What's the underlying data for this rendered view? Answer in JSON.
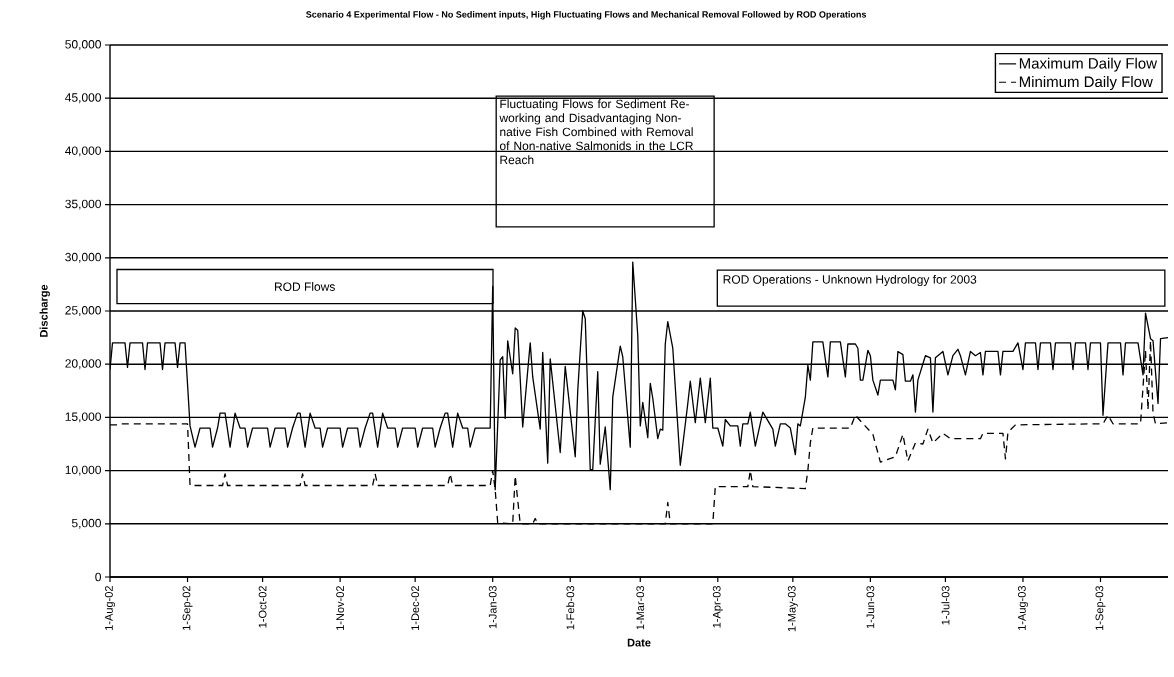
{
  "chart_data": {
    "type": "line",
    "title": "Scenario 4 Experimental Flow - No Sediment inputs, High Fluctuating Flows and Mechanical Removal Followed by ROD Operations",
    "xlabel": "Date",
    "ylabel": "Discharge",
    "xlim": [
      "2002-08-01",
      "2003-09-28"
    ],
    "xticks": [
      {
        "value": "2002-08-01",
        "label": "1-Aug-02"
      },
      {
        "value": "2002-09-01",
        "label": "1-Sep-02"
      },
      {
        "value": "2002-10-01",
        "label": "1-Oct-02"
      },
      {
        "value": "2002-11-01",
        "label": "1-Nov-02"
      },
      {
        "value": "2002-12-01",
        "label": "1-Dec-02"
      },
      {
        "value": "2003-01-01",
        "label": "1-Jan-03"
      },
      {
        "value": "2003-02-01",
        "label": "1-Feb-03"
      },
      {
        "value": "2003-03-01",
        "label": "1-Mar-03"
      },
      {
        "value": "2003-04-01",
        "label": "1-Apr-03"
      },
      {
        "value": "2003-05-01",
        "label": "1-May-03"
      },
      {
        "value": "2003-06-01",
        "label": "1-Jun-03"
      },
      {
        "value": "2003-07-01",
        "label": "1-Jul-03"
      },
      {
        "value": "2003-08-01",
        "label": "1-Aug-03"
      },
      {
        "value": "2003-09-01",
        "label": "1-Sep-03"
      }
    ],
    "ylim": [
      0,
      50000
    ],
    "yticks": [
      0,
      {
        "value": 5000,
        "label": "5,000"
      },
      {
        "value": 10000,
        "label": "10,000"
      },
      {
        "value": 15000,
        "label": "15,000"
      },
      {
        "value": 20000,
        "label": "20,000"
      },
      {
        "value": 25000,
        "label": "25,000"
      },
      {
        "value": 30000,
        "label": "30,000"
      },
      {
        "value": 35000,
        "label": "35,000"
      },
      {
        "value": 40000,
        "label": "40,000"
      },
      {
        "value": 45000,
        "label": "45,000"
      },
      {
        "value": 50000,
        "label": "50,000"
      }
    ],
    "grid": "y",
    "legend": "top right",
    "marker": "none",
    "annotations": [
      "ROD Flows",
      "Fluctuating Flows for Sediment Re-working and Disadvantaging Non-native Fish Combined with Removal of Non-native Salmonids in the LCR Reach",
      "ROD Operations - Unknown Hydrology for 2003"
    ],
    "series": [
      {
        "name": "Maximum Daily Flow",
        "color": "#000000",
        "line_style": "solid",
        "x": [
          "2002-08-01",
          "2002-08-02",
          "2002-08-07",
          "2002-08-08",
          "2002-08-09",
          "2002-08-14",
          "2002-08-15",
          "2002-08-16",
          "2002-08-21",
          "2002-08-22",
          "2002-08-23",
          "2002-08-27",
          "2002-08-28",
          "2002-08-29",
          "2002-08-31",
          "2002-09-02",
          "2002-09-04",
          "2002-09-06",
          "2002-09-10",
          "2002-09-11",
          "2002-09-13",
          "2002-09-14",
          "2002-09-16",
          "2002-09-18",
          "2002-09-20",
          "2002-09-22",
          "2002-09-24",
          "2002-09-25",
          "2002-09-27",
          "2002-10-03",
          "2002-10-04",
          "2002-10-06",
          "2002-10-10",
          "2002-10-11",
          "2002-10-13",
          "2002-10-15",
          "2002-10-16",
          "2002-10-18",
          "2002-10-20",
          "2002-10-22",
          "2002-10-24",
          "2002-10-25",
          "2002-10-27",
          "2002-11-01",
          "2002-11-02",
          "2002-11-04",
          "2002-11-08",
          "2002-11-09",
          "2002-11-11",
          "2002-11-13",
          "2002-11-14",
          "2002-11-16",
          "2002-11-18",
          "2002-11-20",
          "2002-11-23",
          "2002-11-24",
          "2002-11-26",
          "2002-12-01",
          "2002-12-02",
          "2002-12-04",
          "2002-12-08",
          "2002-12-09",
          "2002-12-11",
          "2002-12-13",
          "2002-12-14",
          "2002-12-16",
          "2002-12-18",
          "2002-12-20",
          "2002-12-22",
          "2002-12-23",
          "2002-12-25",
          "2002-12-31",
          "2003-01-01",
          "2003-01-02",
          "2003-01-04",
          "2003-01-05",
          "2003-01-06",
          "2003-01-07",
          "2003-01-09",
          "2003-01-10",
          "2003-01-11",
          "2003-01-13",
          "2003-01-16",
          "2003-01-17",
          "2003-01-20",
          "2003-01-21",
          "2003-01-23",
          "2003-01-24",
          "2003-01-28",
          "2003-01-30",
          "2003-02-03",
          "2003-02-04",
          "2003-02-06",
          "2003-02-07",
          "2003-02-09",
          "2003-02-10",
          "2003-02-12",
          "2003-02-13",
          "2003-02-15",
          "2003-02-17",
          "2003-02-18",
          "2003-02-21",
          "2003-02-22",
          "2003-02-25",
          "2003-02-26",
          "2003-02-28",
          "2003-03-01",
          "2003-03-02",
          "2003-03-04",
          "2003-03-05",
          "2003-03-06",
          "2003-03-08",
          "2003-03-09",
          "2003-03-10",
          "2003-03-11",
          "2003-03-12",
          "2003-03-14",
          "2003-03-17",
          "2003-03-20",
          "2003-03-21",
          "2003-03-23",
          "2003-03-25",
          "2003-03-27",
          "2003-03-29",
          "2003-03-30",
          "2003-04-01",
          "2003-04-03",
          "2003-04-04",
          "2003-04-06",
          "2003-04-09",
          "2003-04-10",
          "2003-04-11",
          "2003-04-13",
          "2003-04-14",
          "2003-04-16",
          "2003-04-19",
          "2003-04-23",
          "2003-04-24",
          "2003-04-26",
          "2003-04-28",
          "2003-04-30",
          "2003-05-02",
          "2003-05-03",
          "2003-05-04",
          "2003-05-06",
          "2003-05-07",
          "2003-05-08",
          "2003-05-09",
          "2003-05-13",
          "2003-05-15",
          "2003-05-16",
          "2003-05-20",
          "2003-05-22",
          "2003-05-23",
          "2003-05-26",
          "2003-05-27",
          "2003-05-28",
          "2003-05-29",
          "2003-05-31",
          "2003-06-01",
          "2003-06-02",
          "2003-06-04",
          "2003-06-05",
          "2003-06-10",
          "2003-06-11",
          "2003-06-12",
          "2003-06-14",
          "2003-06-15",
          "2003-06-17",
          "2003-06-18",
          "2003-06-19",
          "2003-06-20",
          "2003-06-23",
          "2003-06-25",
          "2003-06-26",
          "2003-06-27",
          "2003-06-30",
          "2003-07-02",
          "2003-07-04",
          "2003-07-06",
          "2003-07-07",
          "2003-07-09",
          "2003-07-11",
          "2003-07-13",
          "2003-07-15",
          "2003-07-16",
          "2003-07-17",
          "2003-07-22",
          "2003-07-23",
          "2003-07-24",
          "2003-07-28",
          "2003-07-30",
          "2003-08-01",
          "2003-08-02",
          "2003-08-06",
          "2003-08-07",
          "2003-08-08",
          "2003-08-12",
          "2003-08-13",
          "2003-08-14",
          "2003-08-20",
          "2003-08-21",
          "2003-08-22",
          "2003-08-26",
          "2003-08-27",
          "2003-08-28",
          "2003-09-01",
          "2003-09-02",
          "2003-09-04",
          "2003-09-09",
          "2003-09-10",
          "2003-09-11",
          "2003-09-16",
          "2003-09-18",
          "2003-09-19",
          "2003-09-21",
          "2003-09-22",
          "2003-09-24",
          "2003-09-25",
          "2003-09-28"
        ],
        "values": [
          19500,
          22000,
          22000,
          19700,
          22000,
          22000,
          19500,
          22000,
          22000,
          19500,
          22000,
          22000,
          19700,
          22000,
          22000,
          14200,
          12200,
          14000,
          14000,
          12200,
          14000,
          15400,
          15400,
          12200,
          15400,
          14000,
          14000,
          12200,
          14000,
          14000,
          12200,
          14000,
          14000,
          12200,
          14000,
          15400,
          15400,
          12200,
          15400,
          14000,
          14000,
          12200,
          14000,
          14000,
          12200,
          14000,
          14000,
          12200,
          14000,
          15400,
          15400,
          12200,
          15400,
          14000,
          14000,
          12200,
          14000,
          14000,
          12200,
          14000,
          14000,
          12200,
          14000,
          15400,
          15400,
          12200,
          15400,
          14000,
          14000,
          12200,
          14000,
          14000,
          27300,
          8200,
          20400,
          20700,
          14900,
          22200,
          19100,
          23400,
          23200,
          14100,
          22000,
          18800,
          13900,
          21100,
          10700,
          20500,
          11700,
          19800,
          11300,
          17500,
          25000,
          24300,
          10100,
          10100,
          19300,
          10600,
          14100,
          8200,
          16900,
          21700,
          20700,
          12200,
          29600,
          22700,
          14200,
          16400,
          13100,
          18200,
          16800,
          13000,
          13900,
          13800,
          21900,
          24000,
          21500,
          10500,
          16300,
          18400,
          14500,
          18700,
          14500,
          18700,
          14000,
          14000,
          12300,
          14800,
          14200,
          14200,
          12300,
          14400,
          14400,
          15500,
          12300,
          15500,
          13900,
          12300,
          14400,
          14400,
          14000,
          11500,
          14400,
          14200,
          16900,
          19900,
          18500,
          22100,
          22100,
          18800,
          22100,
          22100,
          18800,
          21900,
          21900,
          21500,
          18500,
          18500,
          21300,
          20800,
          18500,
          17100,
          18500,
          18500,
          17600,
          21200,
          20900,
          18400,
          18400,
          19000,
          15500,
          18500,
          20800,
          20600,
          15500,
          20600,
          21200,
          19000,
          20800,
          21400,
          20800,
          19000,
          21200,
          20800,
          21100,
          19000,
          21200,
          21200,
          19000,
          21200,
          21200,
          22000,
          19500,
          22000,
          22000,
          19500,
          22000,
          22000,
          19500,
          22000,
          22000,
          19500,
          22000,
          22000,
          19500,
          22000,
          22000,
          15200,
          22000,
          22000,
          19000,
          22000,
          22000,
          19000,
          24800,
          22400,
          22200,
          16300,
          22400,
          22500
        ]
      },
      {
        "name": "Minimum Daily Flow",
        "color": "#000000",
        "line_style": "dashed",
        "x": [
          "2002-08-01",
          "2002-08-04",
          "2002-08-05",
          "2002-09-01",
          "2002-09-02",
          "2002-09-15",
          "2002-09-16",
          "2002-09-17",
          "2002-10-16",
          "2002-10-17",
          "2002-10-18",
          "2002-11-14",
          "2002-11-15",
          "2002-11-16",
          "2002-12-14",
          "2002-12-15",
          "2002-12-16",
          "2002-12-31",
          "2003-01-01",
          "2003-01-02",
          "2003-01-03",
          "2003-01-09",
          "2003-01-10",
          "2003-01-12",
          "2003-01-17",
          "2003-01-18",
          "2003-01-19",
          "2003-03-11",
          "2003-03-12",
          "2003-03-13",
          "2003-03-30",
          "2003-03-31",
          "2003-04-13",
          "2003-04-14",
          "2003-04-15",
          "2003-05-06",
          "2003-05-07",
          "2003-05-08",
          "2003-05-09",
          "2003-05-24",
          "2003-05-26",
          "2003-06-02",
          "2003-06-05",
          "2003-06-11",
          "2003-06-14",
          "2003-06-16",
          "2003-06-19",
          "2003-06-22",
          "2003-06-24",
          "2003-06-26",
          "2003-06-30",
          "2003-07-03",
          "2003-07-15",
          "2003-07-16",
          "2003-07-24",
          "2003-07-25",
          "2003-07-26",
          "2003-07-29",
          "2003-09-02",
          "2003-09-04",
          "2003-09-06",
          "2003-09-17",
          "2003-09-19",
          "2003-09-20",
          "2003-09-21",
          "2003-09-22",
          "2003-09-23",
          "2003-09-28"
        ],
        "values": [
          14300,
          14300,
          14400,
          14400,
          8600,
          8600,
          9700,
          8600,
          8600,
          9700,
          8600,
          8600,
          9700,
          8600,
          8600,
          9700,
          8600,
          8600,
          10000,
          8200,
          5100,
          5000,
          9500,
          5000,
          5000,
          5500,
          5000,
          5000,
          7000,
          5000,
          5000,
          8500,
          8500,
          10000,
          8500,
          8300,
          10000,
          12600,
          14000,
          14000,
          15200,
          13400,
          10800,
          11300,
          13400,
          10900,
          12600,
          12500,
          13900,
          12600,
          13500,
          13000,
          13000,
          13500,
          13500,
          11100,
          13600,
          14300,
          14400,
          15200,
          14400,
          14400,
          21300,
          15700,
          22200,
          15400,
          14400,
          14500
        ]
      }
    ]
  }
}
